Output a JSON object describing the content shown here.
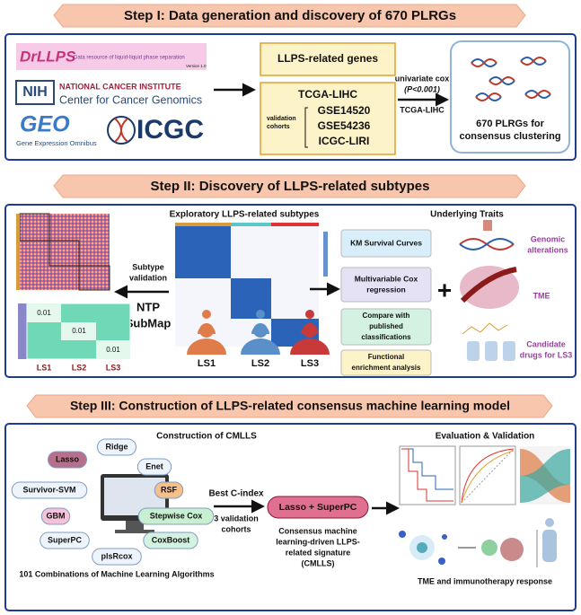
{
  "step1": {
    "title": "Step I: Data generation and discovery of 670 PLRGs",
    "logos": {
      "drllps": "DrLLPS",
      "drllps_subtitle": "Data resource of liquid-liquid phase separation",
      "drllps_version": "Version 1.0",
      "nih": "NIH",
      "nci": "NATIONAL CANCER INSTITUTE",
      "ccg": "Center for Cancer Genomics",
      "geo": "GEO",
      "geo_subtitle": "Gene Expression Omnibus",
      "icgc": "ICGC"
    },
    "genes_box": "LLPS-related genes",
    "cohort_box": {
      "training": "TCGA-LIHC",
      "validation_label": [
        "validation",
        "cohorts"
      ],
      "validation": [
        "GSE14520",
        "GSE54236",
        "ICGC-LIRI"
      ]
    },
    "arrow": {
      "method": "univariate cox",
      "threshold": "(P<0.001)",
      "cohort": "TCGA-LIHC"
    },
    "result": [
      "670 PLRGs for",
      "consensus clustering"
    ]
  },
  "step2": {
    "title": "Step II: Discovery of LLPS-related subtypes",
    "exploratory": "Exploratory LLPS-related subtypes",
    "validation": {
      "label": [
        "Subtype",
        "validation"
      ],
      "methods": [
        "NTP",
        "SubMap"
      ],
      "submap_values": [
        "0.01",
        "0.01",
        "0.01"
      ],
      "submap_labels": [
        "LS1",
        "LS2",
        "LS3"
      ]
    },
    "subtypes": [
      "LS1",
      "LS2",
      "LS3"
    ],
    "traits_title": "Underlying Traits",
    "traits": [
      [
        "KM Survival Curves"
      ],
      [
        "Multivariable Cox",
        "regression"
      ],
      [
        "Compare with",
        "published",
        "classifications"
      ],
      [
        "Functional",
        "enrichment analysis"
      ]
    ],
    "plus": "+",
    "trait_icons": [
      [
        "Genomic",
        "alterations"
      ],
      [
        "TME"
      ],
      [
        "Candidate",
        "drugs for LS3"
      ]
    ]
  },
  "step3": {
    "title": "Step III: Construction of LLPS-related consensus machine learning model",
    "construction": "Construction of CMLLS",
    "algorithms": [
      "Ridge",
      "Lasso",
      "Enet",
      "Survivor-SVM",
      "RSF",
      "GBM",
      "Stepwise Cox",
      "SuperPC",
      "CoxBoost",
      "plsRcox"
    ],
    "combinations": "101 Combinations of Machine Learning Algorithms",
    "selection": [
      "Best C-index",
      "3 validation",
      "cohorts"
    ],
    "model": "Lasso + SuperPC",
    "signature": [
      "Consensus machine",
      "learning-driven LLPS-",
      "related signature",
      "(CMLLS)"
    ],
    "evaluation": "Evaluation & Validation",
    "response": "TME and immunotherapy response"
  }
}
